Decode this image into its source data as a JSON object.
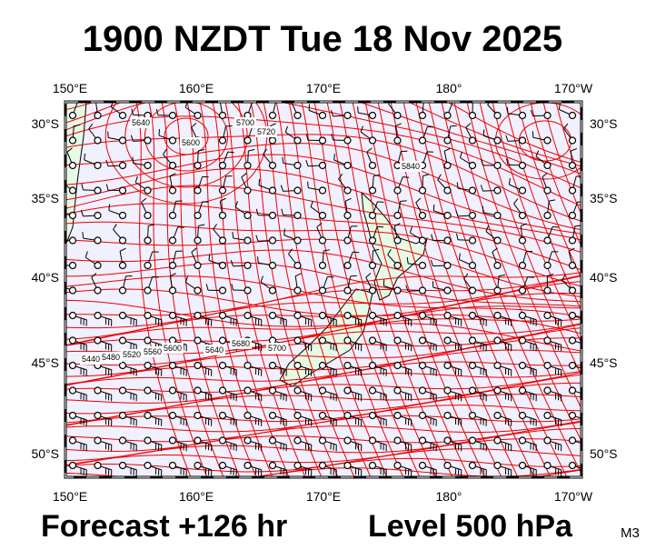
{
  "title": "1900 NZDT Tue 18 Nov 2025",
  "map": {
    "lon_labels": [
      "150°E",
      "160°E",
      "170°E",
      "180°",
      "170°W"
    ],
    "lat_labels": [
      "30°S",
      "35°S",
      "40°S",
      "45°S",
      "50°S"
    ],
    "contour_labels": [
      "5640",
      "5600",
      "5700",
      "5720",
      "5840",
      "5440",
      "5480",
      "5520",
      "5560",
      "5600",
      "5640",
      "5680",
      "5700"
    ]
  },
  "footer": {
    "forecast": "Forecast +126 hr",
    "level": "Level 500 hPa",
    "code": "M3"
  }
}
